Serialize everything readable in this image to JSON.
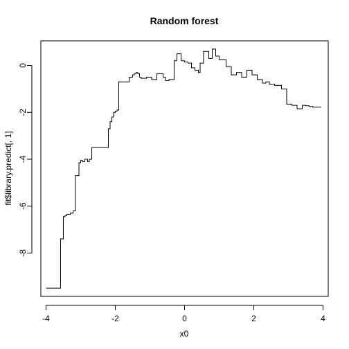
{
  "chart_data": {
    "type": "line",
    "title": "Random forest",
    "xlabel": "x0",
    "ylabel": "fit$library.predict[, 1]",
    "xlim": [
      -4.15,
      4.15
    ],
    "ylim": [
      -9.85,
      1.05
    ],
    "x_ticks": [
      -4,
      -2,
      0,
      2,
      4
    ],
    "y_ticks": [
      -8,
      -6,
      -4,
      -2,
      0
    ],
    "x_tick_labels": [
      "-4",
      "-2",
      "0",
      "2",
      "4"
    ],
    "y_tick_labels": [
      "-8",
      "-6",
      "-4",
      "-2",
      "0"
    ],
    "grid": false,
    "series": [
      {
        "step": true,
        "color": "#000000",
        "x": [
          -4.0,
          -3.58,
          -3.5,
          -3.45,
          -3.4,
          -3.3,
          -3.22,
          -3.15,
          -3.05,
          -3.0,
          -2.95,
          -2.88,
          -2.8,
          -2.75,
          -2.68,
          -2.62,
          -2.55,
          -2.2,
          -2.15,
          -2.1,
          -2.05,
          -2.0,
          -1.95,
          -1.9,
          -1.6,
          -1.5,
          -1.45,
          -1.4,
          -1.35,
          -1.3,
          -1.25,
          -1.1,
          -0.95,
          -0.8,
          -0.62,
          -0.55,
          -0.45,
          -0.3,
          -0.22,
          -0.1,
          0.0,
          0.1,
          0.2,
          0.3,
          0.4,
          0.45,
          0.55,
          0.7,
          0.8,
          0.9,
          1.0,
          1.2,
          1.35,
          1.5,
          1.65,
          1.8,
          1.95,
          2.1,
          2.25,
          2.35,
          2.45,
          2.6,
          2.8,
          2.95,
          3.1,
          3.25,
          3.4,
          3.5,
          3.6,
          3.7,
          3.8,
          3.95
        ],
        "y": [
          -9.5,
          -7.4,
          -6.45,
          -6.4,
          -6.35,
          -6.3,
          -6.2,
          -4.7,
          -4.15,
          -4.05,
          -4.1,
          -4.0,
          -4.1,
          -4.0,
          -3.5,
          -3.5,
          -3.5,
          -2.7,
          -2.4,
          -2.2,
          -2.0,
          -1.95,
          -1.9,
          -0.7,
          -0.5,
          -0.4,
          -0.35,
          -0.3,
          -0.35,
          -0.5,
          -0.55,
          -0.5,
          -0.6,
          -0.35,
          -0.5,
          -0.65,
          -0.6,
          0.2,
          0.5,
          0.2,
          0.15,
          0.1,
          -0.1,
          -0.2,
          -0.3,
          0.1,
          0.6,
          0.3,
          0.7,
          0.4,
          0.25,
          -0.05,
          -0.4,
          -0.3,
          -0.5,
          -0.2,
          -0.4,
          -0.6,
          -0.75,
          -0.7,
          -0.8,
          -0.85,
          -1.0,
          -1.65,
          -1.7,
          -1.85,
          -1.7,
          -1.72,
          -1.75,
          -1.78,
          -1.78,
          -1.78
        ]
      }
    ]
  }
}
